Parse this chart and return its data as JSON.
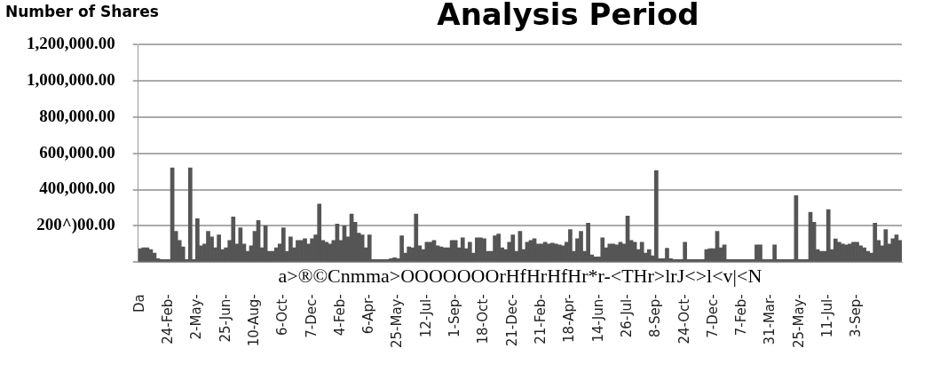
{
  "chart_data": {
    "type": "bar",
    "title": "Analysis Period",
    "ylabel": "Number of Shares",
    "annotations": [
      "a>®©Cnmma>OOOOOOOrHfHrHfHr*r-<THr>lrJ<>l<v|<N"
    ],
    "categories": [
      "Da",
      null,
      null,
      null,
      null,
      null,
      null,
      null,
      "24-Feb-",
      null,
      null,
      null,
      null,
      null,
      null,
      null,
      "2-May-",
      null,
      null,
      null,
      null,
      null,
      null,
      null,
      "25-Jun-",
      null,
      null,
      null,
      null,
      null,
      null,
      null,
      "10-Aug-",
      null,
      null,
      null,
      null,
      null,
      null,
      null,
      "6-Oct-",
      null,
      null,
      null,
      null,
      null,
      null,
      null,
      "7-Dec-",
      null,
      null,
      null,
      null,
      null,
      null,
      null,
      "4-Feb-",
      null,
      null,
      null,
      null,
      null,
      null,
      null,
      "6-Apr-",
      null,
      null,
      null,
      null,
      null,
      null,
      null,
      "25-May-",
      null,
      null,
      null,
      null,
      null,
      null,
      null,
      "12-Jul-",
      null,
      null,
      null,
      null,
      null,
      null,
      null,
      "1-Sep-",
      null,
      null,
      null,
      null,
      null,
      null,
      null,
      "18-Oct-",
      null,
      null,
      null,
      null,
      null,
      null,
      null,
      "21-Dec-",
      null,
      null,
      null,
      null,
      null,
      null,
      null,
      "21-Feb-",
      null,
      null,
      null,
      null,
      null,
      null,
      null,
      "18-Apr-",
      null,
      null,
      null,
      null,
      null,
      null,
      null,
      "14-Jun-",
      null,
      null,
      null,
      null,
      null,
      null,
      null,
      "26-Jul-",
      null,
      null,
      null,
      null,
      null,
      null,
      null,
      "8-Sep-",
      null,
      null,
      null,
      null,
      null,
      null,
      null,
      "24-Oct-",
      null,
      null,
      null,
      null,
      null,
      null,
      null,
      "7-Dec-",
      null,
      null,
      null,
      null,
      null,
      null,
      null,
      "7-Feb-",
      null,
      null,
      null,
      null,
      null,
      null,
      null,
      "31-Mar-",
      null,
      null,
      null,
      null,
      null,
      null,
      null,
      "25-May-",
      null,
      null,
      null,
      null,
      null,
      null,
      null,
      "11-Jul-",
      null,
      null,
      null,
      null,
      null,
      null,
      null,
      "3-Sep-",
      null,
      null,
      null,
      null,
      null,
      null,
      null,
      null,
      null,
      null,
      null,
      null
    ],
    "values": [
      75000,
      80000,
      80000,
      70000,
      50000,
      20000,
      15000,
      15000,
      15000,
      520000,
      170000,
      120000,
      85000,
      15000,
      520000,
      15000,
      240000,
      90000,
      100000,
      170000,
      140000,
      80000,
      150000,
      70000,
      80000,
      120000,
      250000,
      100000,
      190000,
      100000,
      60000,
      90000,
      170000,
      230000,
      80000,
      200000,
      60000,
      60000,
      80000,
      100000,
      190000,
      60000,
      140000,
      80000,
      120000,
      120000,
      130000,
      100000,
      130000,
      150000,
      320000,
      120000,
      110000,
      100000,
      120000,
      210000,
      120000,
      200000,
      140000,
      265000,
      220000,
      160000,
      150000,
      80000,
      150000,
      15000,
      15000,
      15000,
      15000,
      15000,
      20000,
      25000,
      20000,
      145000,
      50000,
      85000,
      80000,
      265000,
      90000,
      70000,
      110000,
      110000,
      120000,
      90000,
      85000,
      80000,
      80000,
      120000,
      120000,
      80000,
      135000,
      75000,
      110000,
      50000,
      135000,
      135000,
      130000,
      60000,
      60000,
      145000,
      155000,
      80000,
      70000,
      110000,
      150000,
      60000,
      170000,
      70000,
      110000,
      120000,
      130000,
      100000,
      100000,
      110000,
      100000,
      105000,
      100000,
      95000,
      90000,
      110000,
      180000,
      60000,
      130000,
      170000,
      60000,
      215000,
      40000,
      30000,
      30000,
      135000,
      80000,
      100000,
      100000,
      95000,
      110000,
      100000,
      255000,
      120000,
      110000,
      70000,
      110000,
      50000,
      70000,
      35000,
      505000,
      20000,
      20000,
      77000,
      20000,
      15000,
      15000,
      15000,
      110000,
      15000,
      15000,
      15000,
      15000,
      15000,
      70000,
      75000,
      75000,
      170000,
      80000,
      95000,
      15000,
      15000,
      15000,
      15000,
      15000,
      15000,
      15000,
      15000,
      95000,
      95000,
      15000,
      15000,
      15000,
      95000,
      15000,
      15000,
      15000,
      15000,
      15000,
      367000,
      15000,
      15000,
      15000,
      275000,
      220000,
      70000,
      60000,
      60000,
      290000,
      70000,
      128000,
      110000,
      100000,
      95000,
      100000,
      110000,
      110000,
      90000,
      80000,
      60000,
      50000,
      215000,
      120000,
      90000,
      180000,
      100000,
      130000,
      150000,
      120000
    ],
    "color": "#555555",
    "ylim": [
      0,
      1200000
    ],
    "yticks": [
      {
        "value": 0,
        "label": null
      },
      {
        "value": 200000,
        "label": "200^)00.00"
      },
      {
        "value": 400000,
        "label": "400,000.00"
      },
      {
        "value": 600000,
        "label": "600,000.00"
      },
      {
        "value": 800000,
        "label": "800,000.00"
      },
      {
        "value": 1000000,
        "label": "1,000,000.00"
      },
      {
        "value": 1200000,
        "label": "1,200,000.00"
      }
    ],
    "grid": "y",
    "legend": false
  }
}
